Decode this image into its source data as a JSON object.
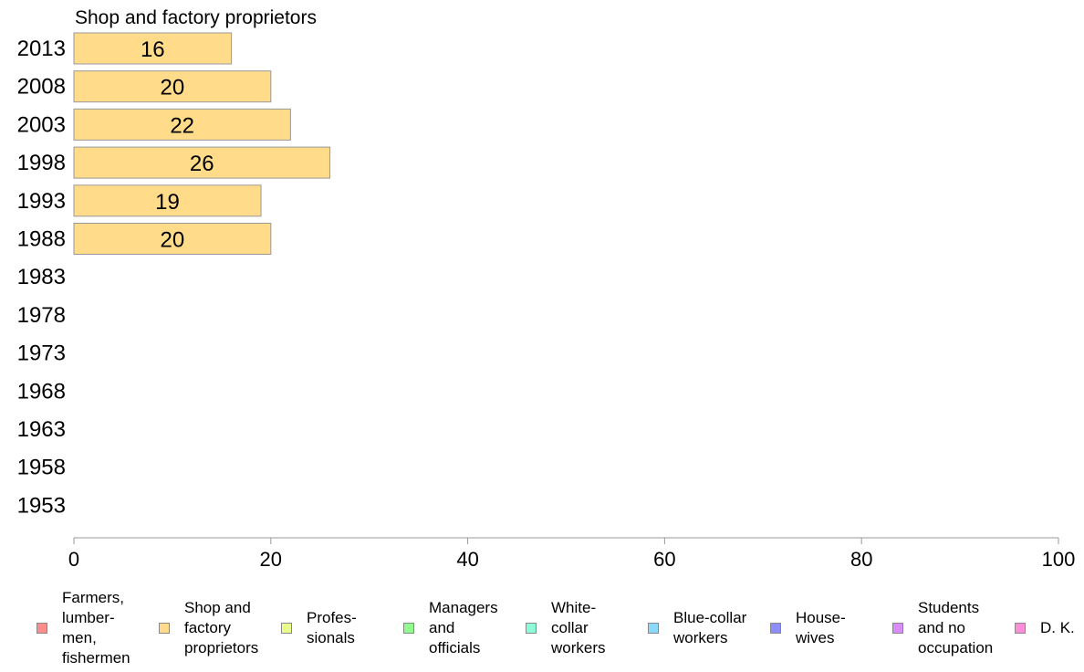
{
  "chart_data": {
    "type": "bar",
    "orientation": "horizontal",
    "title": "Shop and factory proprietors",
    "categories": [
      "2013",
      "2008",
      "2003",
      "1998",
      "1993",
      "1988",
      "1983",
      "1978",
      "1973",
      "1968",
      "1963",
      "1958",
      "1953"
    ],
    "series": [
      {
        "name": "Shop and factory proprietors",
        "values": [
          16,
          20,
          22,
          26,
          19,
          20,
          null,
          null,
          null,
          null,
          null,
          null,
          null
        ],
        "data_labels": [
          "16",
          "20",
          "22",
          "26",
          "19",
          "20",
          "",
          "",
          "",
          "",
          "",
          "",
          ""
        ]
      }
    ],
    "bar_color": "#ffdb8a",
    "bar_border_color": "#999999",
    "xlim": [
      0,
      100
    ],
    "xticks": [
      "0",
      "20",
      "40",
      "60",
      "80",
      "100"
    ],
    "grid": false,
    "legend_position": "bottom",
    "legend": [
      {
        "label": "Farmers,\nlumber-\nmen,\nfishermen",
        "color": "#fc8d8d"
      },
      {
        "label": "Shop and\nfactory\nproprietors",
        "color": "#ffdb8a"
      },
      {
        "label": "Profes-\nsionals",
        "color": "#e8fc8d"
      },
      {
        "label": "Managers\nand\nofficials",
        "color": "#8dfc8d"
      },
      {
        "label": "White-\ncollar\nworkers",
        "color": "#8dfcd9"
      },
      {
        "label": "Blue-collar\nworkers",
        "color": "#8dd9fc"
      },
      {
        "label": "House-\nwives",
        "color": "#8d8dfc"
      },
      {
        "label": "Students\nand no\noccupation",
        "color": "#d98dfc"
      },
      {
        "label": "D. K.",
        "color": "#fc8dd9"
      }
    ]
  }
}
